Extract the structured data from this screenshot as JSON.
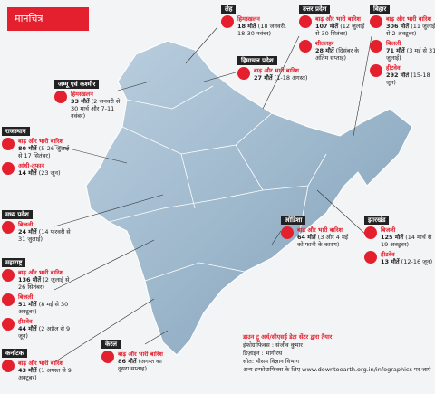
{
  "header": {
    "title": "मानचित्र"
  },
  "regions": [
    {
      "name": "जम्मू एवं कश्मीर",
      "items": [
        {
          "hazard": "हिमस्खलन",
          "deaths": "33 मौतें",
          "period": "(2 जनवरी से 30 मार्च और 7-11 नवंबर)"
        }
      ]
    },
    {
      "name": "लेह",
      "items": [
        {
          "hazard": "हिमस्खलन",
          "deaths": "18 मौतें",
          "period": "(18 जनवरी, 18-30 नवंबर)"
        }
      ]
    },
    {
      "name": "हिमाचल प्रदेश",
      "items": [
        {
          "hazard": "बाढ़ और भारी बारिश",
          "deaths": "27 मौतें",
          "period": "(1-18 अगस्त)"
        }
      ]
    },
    {
      "name": "उत्तर प्रदेश",
      "items": [
        {
          "hazard": "बाढ़ और भारी बारिश",
          "deaths": "107 मौतें",
          "period": "(12 जुलाई से 30 सितंबर)"
        },
        {
          "hazard": "शीतलहर",
          "deaths": "28 मौतें",
          "period": "(दिसंबर के अंतिम सप्ताह)"
        }
      ]
    },
    {
      "name": "बिहार",
      "items": [
        {
          "hazard": "बाढ़ और भारी बारिश",
          "deaths": "306 मौतें",
          "period": "(11 जुलाई से 2 अक्टूबर)"
        },
        {
          "hazard": "बिजली",
          "deaths": "71 मौतें",
          "period": "(3 मई से 31 जुलाई)"
        },
        {
          "hazard": "हीटवेव",
          "deaths": "292 मौतें",
          "period": "(15-18 जून)"
        }
      ]
    },
    {
      "name": "राजस्थान",
      "items": [
        {
          "hazard": "बाढ़ और भारी बारिश",
          "deaths": "80 मौतें",
          "period": "(5-26 जुलाई से 17 सितंबर)"
        },
        {
          "hazard": "आंधी-तूफान",
          "deaths": "14 मौतें",
          "period": "(23 जून)"
        }
      ]
    },
    {
      "name": "मध्य प्रदेश",
      "items": [
        {
          "hazard": "बिजली",
          "deaths": "24 मौतें",
          "period": "(14 फरवरी से 31 जुलाई)"
        }
      ]
    },
    {
      "name": "महाराष्ट्र",
      "items": [
        {
          "hazard": "बाढ़ और भारी बारिश",
          "deaths": "136 मौतें",
          "period": "(2 जुलाई से 26 सितंबर)"
        },
        {
          "hazard": "बिजली",
          "deaths": "51 मौतें",
          "period": "(8 मई से 30 अक्टूबर)"
        },
        {
          "hazard": "हीटवेव",
          "deaths": "44 मौतें",
          "period": "(2 अप्रैल से 9 जून)"
        }
      ]
    },
    {
      "name": "कर्नाटक",
      "items": [
        {
          "hazard": "बाढ़ और भारी बारिश",
          "deaths": "43 मौतें",
          "period": "(1 अगस्त से 9 अक्टूबर)"
        }
      ]
    },
    {
      "name": "केरल",
      "items": [
        {
          "hazard": "बाढ़ और भारी बारिश",
          "deaths": "86 मौतें",
          "period": "(अगस्त का दूसरा सप्ताह)"
        }
      ]
    },
    {
      "name": "ओडिशा",
      "items": [
        {
          "hazard": "बाढ़ और भारी बारिश",
          "deaths": "64 मौतें",
          "period": "(3 और 4 मई को फानी के कारण)"
        }
      ]
    },
    {
      "name": "झारखंड",
      "items": [
        {
          "hazard": "बिजली",
          "deaths": "125 मौतें",
          "period": "(14 मार्च से 19 अक्टूबर)"
        },
        {
          "hazard": "हीटवेव",
          "deaths": "13 मौतें",
          "period": "(12-16 जून)"
        }
      ]
    }
  ],
  "credits": [
    "डाउन टू अर्थ/सीएसई डेटा सेंटर द्वारा तैयार",
    "इंफोग्राफिक्स : संजीव कुमार",
    "डिज़ाइन : भागीरथ",
    "स्रोत: मौसम विज्ञान विभाग",
    "अन्य इन्फोग्राफिक्स के लिए www.downtoearth.org.in/infographics पर जाएं"
  ]
}
